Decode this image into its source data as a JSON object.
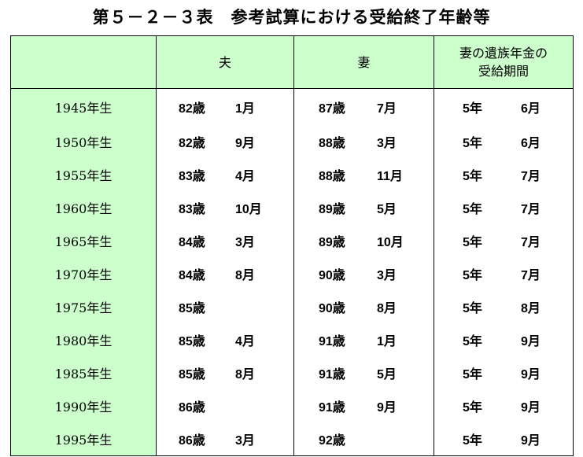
{
  "title": "第５－２－３表　参考試算における受給終了年齢等",
  "headers": {
    "blank": "",
    "husband": "夫",
    "wife": "妻",
    "survivor_line1": "妻の遺族年金の",
    "survivor_line2": "受給期間"
  },
  "rows": [
    {
      "year": "1945年生",
      "h_age": "82歳",
      "h_mon": "1月",
      "w_age": "87歳",
      "w_mon": "7月",
      "s_yr": "5年",
      "s_mon": "6月"
    },
    {
      "year": "1950年生",
      "h_age": "82歳",
      "h_mon": "9月",
      "w_age": "88歳",
      "w_mon": "3月",
      "s_yr": "5年",
      "s_mon": "6月"
    },
    {
      "year": "1955年生",
      "h_age": "83歳",
      "h_mon": "4月",
      "w_age": "88歳",
      "w_mon": "11月",
      "s_yr": "5年",
      "s_mon": "7月"
    },
    {
      "year": "1960年生",
      "h_age": "83歳",
      "h_mon": "10月",
      "w_age": "89歳",
      "w_mon": "5月",
      "s_yr": "5年",
      "s_mon": "7月"
    },
    {
      "year": "1965年生",
      "h_age": "84歳",
      "h_mon": "3月",
      "w_age": "89歳",
      "w_mon": "10月",
      "s_yr": "5年",
      "s_mon": "7月"
    },
    {
      "year": "1970年生",
      "h_age": "84歳",
      "h_mon": "8月",
      "w_age": "90歳",
      "w_mon": "3月",
      "s_yr": "5年",
      "s_mon": "7月"
    },
    {
      "year": "1975年生",
      "h_age": "85歳",
      "h_mon": "",
      "w_age": "90歳",
      "w_mon": "8月",
      "s_yr": "5年",
      "s_mon": "8月"
    },
    {
      "year": "1980年生",
      "h_age": "85歳",
      "h_mon": "4月",
      "w_age": "91歳",
      "w_mon": "1月",
      "s_yr": "5年",
      "s_mon": "9月"
    },
    {
      "year": "1985年生",
      "h_age": "85歳",
      "h_mon": "8月",
      "w_age": "91歳",
      "w_mon": "5月",
      "s_yr": "5年",
      "s_mon": "9月"
    },
    {
      "year": "1990年生",
      "h_age": "86歳",
      "h_mon": "",
      "w_age": "91歳",
      "w_mon": "9月",
      "s_yr": "5年",
      "s_mon": "9月"
    },
    {
      "year": "1995年生",
      "h_age": "86歳",
      "h_mon": "3月",
      "w_age": "92歳",
      "w_mon": "",
      "s_yr": "5年",
      "s_mon": "9月"
    }
  ],
  "colors": {
    "header_bg": "#ccffcc",
    "year_bg": "#ccffcc",
    "border": "#000000"
  }
}
